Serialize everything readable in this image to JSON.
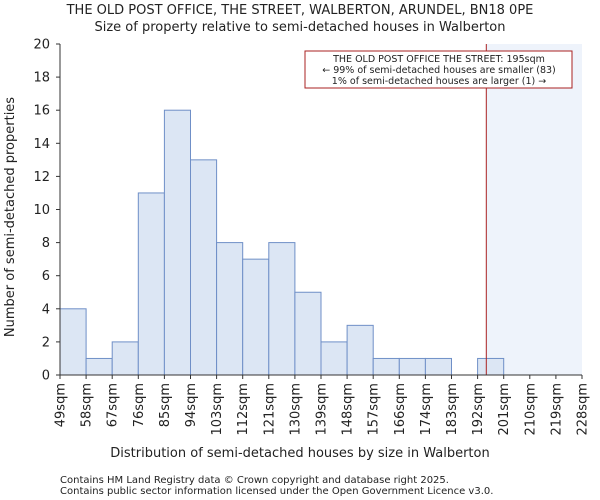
{
  "chart_data": {
    "type": "bar",
    "title_lines": [
      "THE OLD POST OFFICE, THE STREET, WALBERTON, ARUNDEL, BN18 0PE",
      "Size of property relative to semi-detached houses in Walberton"
    ],
    "xlabel": "Distribution of semi-detached houses by size in Walberton",
    "ylabel": "Number of semi-detached properties",
    "ylim": [
      0,
      20
    ],
    "yticks": [
      0,
      2,
      4,
      6,
      8,
      10,
      12,
      14,
      16,
      18,
      20
    ],
    "bin_edges": [
      49,
      58,
      67,
      76,
      85,
      94,
      103,
      112,
      121,
      130,
      139,
      148,
      157,
      166,
      174,
      183,
      192,
      201,
      210,
      219,
      228
    ],
    "tick_labels": [
      "49sqm",
      "58sqm",
      "67sqm",
      "76sqm",
      "85sqm",
      "94sqm",
      "103sqm",
      "112sqm",
      "121sqm",
      "130sqm",
      "139sqm",
      "148sqm",
      "157sqm",
      "166sqm",
      "174sqm",
      "183sqm",
      "192sqm",
      "201sqm",
      "210sqm",
      "219sqm",
      "228sqm"
    ],
    "values": [
      4,
      1,
      2,
      11,
      16,
      13,
      8,
      7,
      8,
      5,
      2,
      3,
      1,
      1,
      1,
      0,
      1,
      0,
      0,
      0
    ],
    "marker_value": 195,
    "annotation": [
      "THE OLD POST OFFICE THE STREET: 195sqm",
      "← 99% of semi-detached houses are smaller (83)",
      "1% of semi-detached houses are larger (1) →"
    ],
    "colors": {
      "bar_fill": "#dce6f4",
      "bar_edge": "#6f8fc7",
      "marker": "#aa2222",
      "shade": "#eef3fb"
    }
  },
  "footer": {
    "line1": "Contains HM Land Registry data © Crown copyright and database right 2025.",
    "line2": "Contains public sector information licensed under the Open Government Licence v3.0."
  }
}
